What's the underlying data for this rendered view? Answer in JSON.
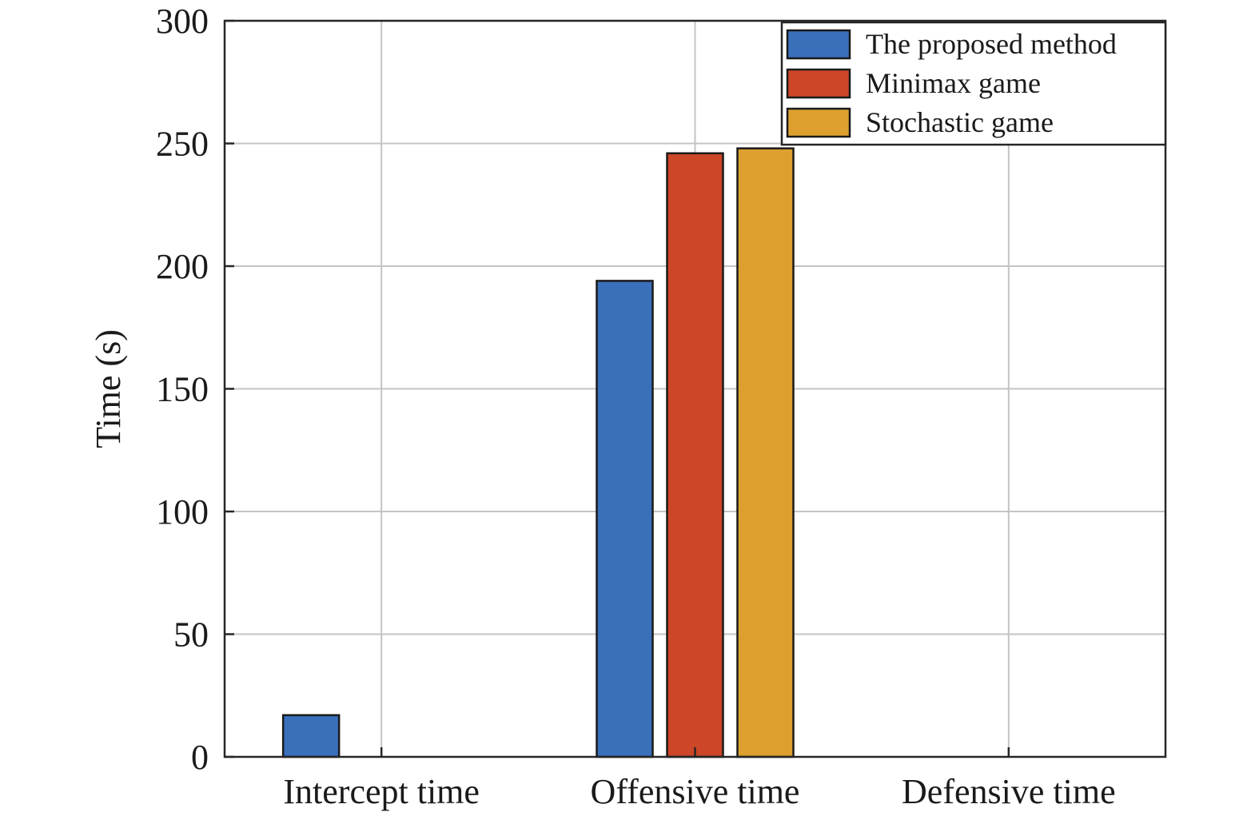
{
  "chart_data": {
    "type": "bar",
    "title": "",
    "xlabel": "",
    "ylabel": "Time (s)",
    "ylim": [
      0,
      300
    ],
    "yticks": [
      0,
      50,
      100,
      150,
      200,
      250,
      300
    ],
    "grid": true,
    "legend_position": "top-right",
    "categories": [
      "Intercept time",
      "Offensive time",
      "Defensive time"
    ],
    "series": [
      {
        "name": "The proposed method",
        "color": "#3a6fba",
        "values": [
          17,
          194,
          0
        ]
      },
      {
        "name": "Minimax game",
        "color": "#cc4627",
        "values": [
          0,
          246,
          0
        ]
      },
      {
        "name": "Stochastic game",
        "color": "#dda02e",
        "values": [
          0,
          248,
          0
        ]
      }
    ]
  }
}
